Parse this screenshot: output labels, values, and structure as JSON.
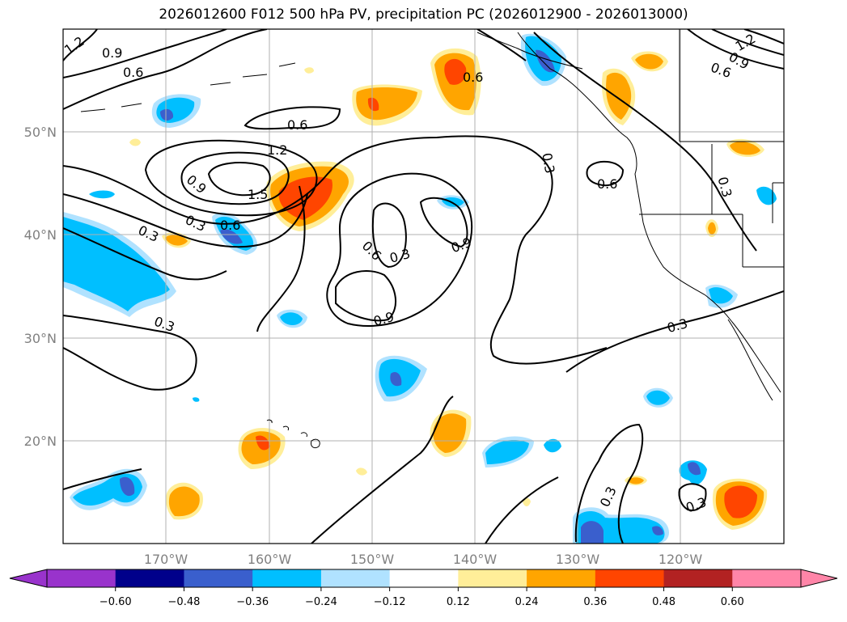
{
  "title": "2026012600 F012 500 hPa PV, precipitation PC (2026012900 - 2026013000)",
  "map": {
    "lat_labels": [
      "50°N",
      "40°N",
      "30°N",
      "20°N"
    ],
    "lon_labels": [
      "170°W",
      "160°W",
      "150°W",
      "140°W",
      "130°W",
      "120°W"
    ],
    "contour_labels": [
      "1.2",
      "0.9",
      "0.6",
      "0.6",
      "0.6",
      "1.2",
      "1.5",
      "0.9",
      "0.6",
      "0.3",
      "0.3",
      "0.6",
      "0.3",
      "0.9",
      "0.9",
      "0.3",
      "0.3",
      "0.6",
      "0.3",
      "0.3",
      "0.3",
      "0.9",
      "0.6",
      "1.2",
      "0.3"
    ]
  },
  "colorbar": {
    "ticks": [
      "−0.60",
      "−0.48",
      "−0.36",
      "−0.24",
      "−0.12",
      "0.12",
      "0.24",
      "0.36",
      "0.48",
      "0.60"
    ],
    "colors": {
      "under": "#9933cc",
      "bins": [
        "#9933cc",
        "#00008b",
        "#3a5fcd",
        "#00bfff",
        "#b0e2ff",
        "#ffffff",
        "#ffee99",
        "#ffa500",
        "#ff4500",
        "#b22222"
      ],
      "over": "#ff85a8"
    }
  },
  "colors": {
    "precip_pos_light": "#ffee99",
    "precip_pos_mid": "#ffa500",
    "precip_pos_strong": "#ff4500",
    "precip_neg_light": "#b0e2ff",
    "precip_neg_mid": "#00bfff",
    "precip_neg_strong": "#3a5fcd",
    "grid": "#b0b0b0",
    "contour": "#000000"
  }
}
